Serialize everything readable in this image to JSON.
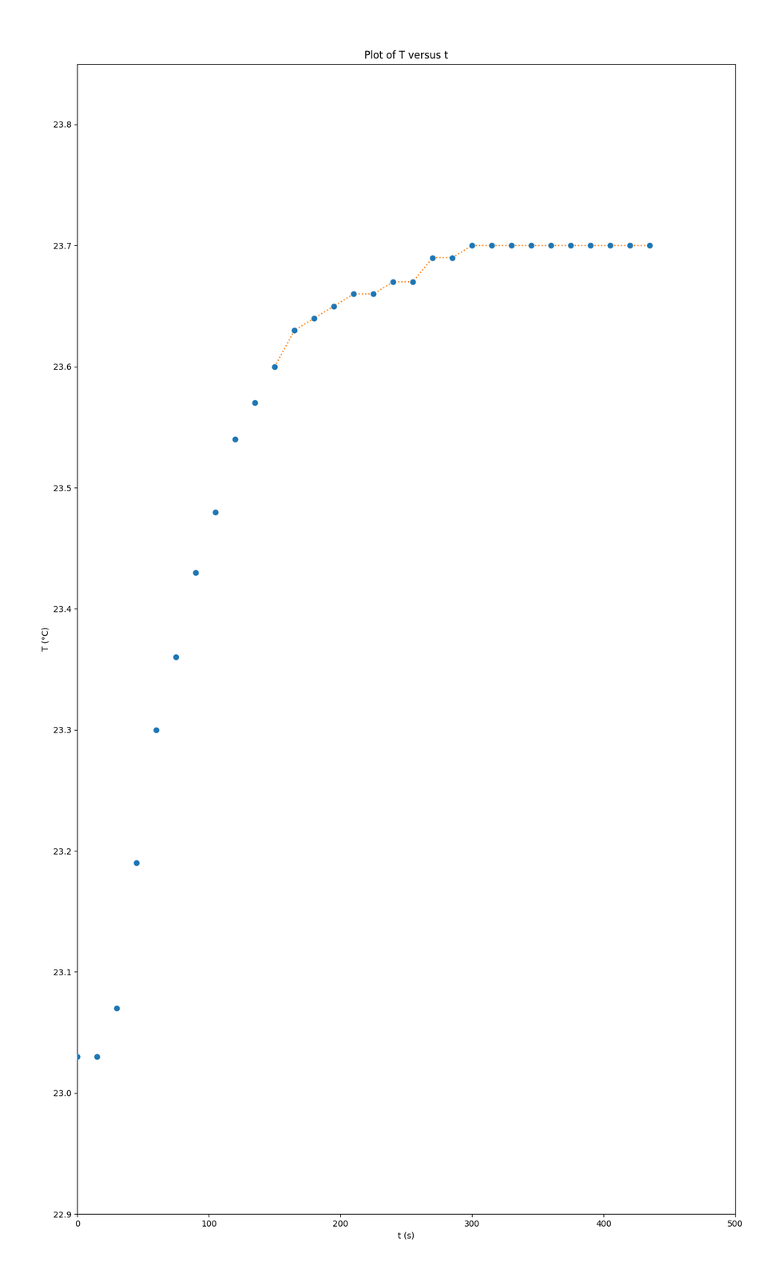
{
  "chart_data": {
    "type": "scatter",
    "title": "Plot of T versus t",
    "x_label": "t (s)",
    "y_label": "T (°C)",
    "series": [
      {
        "type": "scatter",
        "marker": "o",
        "x": [
          0,
          15,
          30,
          45,
          60,
          75,
          90,
          105,
          120,
          135,
          150,
          165,
          180,
          195,
          210,
          225,
          240,
          255,
          270,
          285,
          300,
          315,
          330,
          345,
          360,
          375,
          390,
          405,
          420,
          435
        ],
        "values": [
          23.03,
          23.03,
          23.07,
          23.19,
          23.3,
          23.36,
          23.43,
          23.48,
          23.54,
          23.57,
          23.6,
          23.63,
          23.64,
          23.65,
          23.66,
          23.66,
          23.67,
          23.67,
          23.69,
          23.69,
          23.7,
          23.7,
          23.7,
          23.7,
          23.7,
          23.7,
          23.7,
          23.7,
          23.7,
          23.7
        ]
      },
      {
        "type": "line",
        "line_style": "dotted",
        "x": [
          150,
          165,
          180,
          195,
          210,
          225,
          240,
          255,
          270,
          285,
          300,
          315,
          330,
          345,
          360,
          375,
          390,
          405,
          420,
          435
        ],
        "values": [
          23.6,
          23.63,
          23.64,
          23.65,
          23.66,
          23.66,
          23.67,
          23.67,
          23.69,
          23.69,
          23.7,
          23.7,
          23.7,
          23.7,
          23.7,
          23.7,
          23.7,
          23.7,
          23.7,
          23.7
        ]
      }
    ],
    "xlim": [
      0,
      500
    ],
    "xticks": [
      0,
      100,
      200,
      300,
      400,
      500
    ],
    "ylim": [
      22.9,
      23.85
    ],
    "yticks": [
      22.9,
      {
        "value": 23,
        "label": "23.0"
      },
      23.1,
      23.2,
      23.3,
      23.4,
      23.5,
      23.6,
      23.7,
      23.8
    ],
    "grid": false
  }
}
